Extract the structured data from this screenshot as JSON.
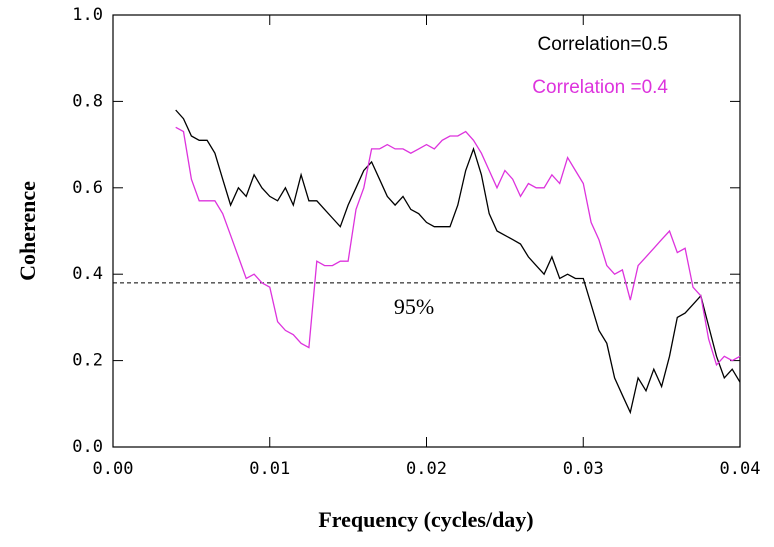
{
  "chart_data": {
    "type": "line",
    "xlabel": "Frequency (cycles/day)",
    "ylabel": "Coherence",
    "xlim": [
      0,
      0.04
    ],
    "ylim": [
      0,
      1
    ],
    "xticks": [
      {
        "value": 0,
        "label": "0.00"
      },
      0.01,
      0.02,
      0.03,
      0.04
    ],
    "yticks": [
      {
        "value": 0,
        "label": "0.0"
      },
      0.2,
      0.4,
      0.6,
      0.8,
      {
        "value": 1,
        "label": "1.0"
      }
    ],
    "threshold": {
      "value": 0.38,
      "label": "95%"
    },
    "x": [
      0.004,
      0.0045,
      0.005,
      0.0055,
      0.006,
      0.0065,
      0.007,
      0.0075,
      0.008,
      0.0085,
      0.009,
      0.0095,
      0.01,
      0.0105,
      0.011,
      0.0115,
      0.012,
      0.0125,
      0.013,
      0.0135,
      0.014,
      0.0145,
      0.015,
      0.0155,
      0.016,
      0.0165,
      0.017,
      0.0175,
      0.018,
      0.0185,
      0.019,
      0.0195,
      0.02,
      0.0205,
      0.021,
      0.0215,
      0.022,
      0.0225,
      0.023,
      0.0235,
      0.024,
      0.0245,
      0.025,
      0.0255,
      0.026,
      0.0265,
      0.027,
      0.0275,
      0.028,
      0.0285,
      0.029,
      0.0295,
      0.03,
      0.0305,
      0.031,
      0.0315,
      0.032,
      0.0325,
      0.033,
      0.0335,
      0.034,
      0.0345,
      0.035,
      0.0355,
      0.036,
      0.0365,
      0.037,
      0.0375,
      0.038,
      0.0385,
      0.039,
      0.0395,
      0.04
    ],
    "series": [
      {
        "name": "Correlation=0.5",
        "color": "#000000",
        "values": [
          0.78,
          0.76,
          0.72,
          0.71,
          0.71,
          0.68,
          0.62,
          0.56,
          0.6,
          0.58,
          0.63,
          0.6,
          0.58,
          0.57,
          0.6,
          0.56,
          0.63,
          0.57,
          0.57,
          0.55,
          0.53,
          0.51,
          0.56,
          0.6,
          0.64,
          0.66,
          0.62,
          0.58,
          0.56,
          0.58,
          0.55,
          0.54,
          0.52,
          0.51,
          0.51,
          0.51,
          0.56,
          0.64,
          0.69,
          0.63,
          0.54,
          0.5,
          0.49,
          0.48,
          0.47,
          0.44,
          0.42,
          0.4,
          0.44,
          0.39,
          0.4,
          0.39,
          0.39,
          0.33,
          0.27,
          0.24,
          0.16,
          0.12,
          0.08,
          0.16,
          0.13,
          0.18,
          0.14,
          0.21,
          0.3,
          0.31,
          0.33,
          0.35,
          0.28,
          0.21,
          0.16,
          0.18,
          0.15
        ]
      },
      {
        "name": "Correlation =0.4",
        "color": "#dd33dd",
        "values": [
          0.74,
          0.73,
          0.62,
          0.57,
          0.57,
          0.57,
          0.54,
          0.49,
          0.44,
          0.39,
          0.4,
          0.38,
          0.37,
          0.29,
          0.27,
          0.26,
          0.24,
          0.23,
          0.43,
          0.42,
          0.42,
          0.43,
          0.43,
          0.55,
          0.6,
          0.69,
          0.69,
          0.7,
          0.69,
          0.69,
          0.68,
          0.69,
          0.7,
          0.69,
          0.71,
          0.72,
          0.72,
          0.73,
          0.71,
          0.68,
          0.64,
          0.6,
          0.64,
          0.62,
          0.58,
          0.61,
          0.6,
          0.6,
          0.63,
          0.61,
          0.67,
          0.64,
          0.61,
          0.52,
          0.48,
          0.42,
          0.4,
          0.41,
          0.34,
          0.42,
          0.44,
          0.46,
          0.48,
          0.5,
          0.45,
          0.46,
          0.37,
          0.35,
          0.25,
          0.19,
          0.21,
          0.2,
          0.21
        ]
      }
    ]
  }
}
